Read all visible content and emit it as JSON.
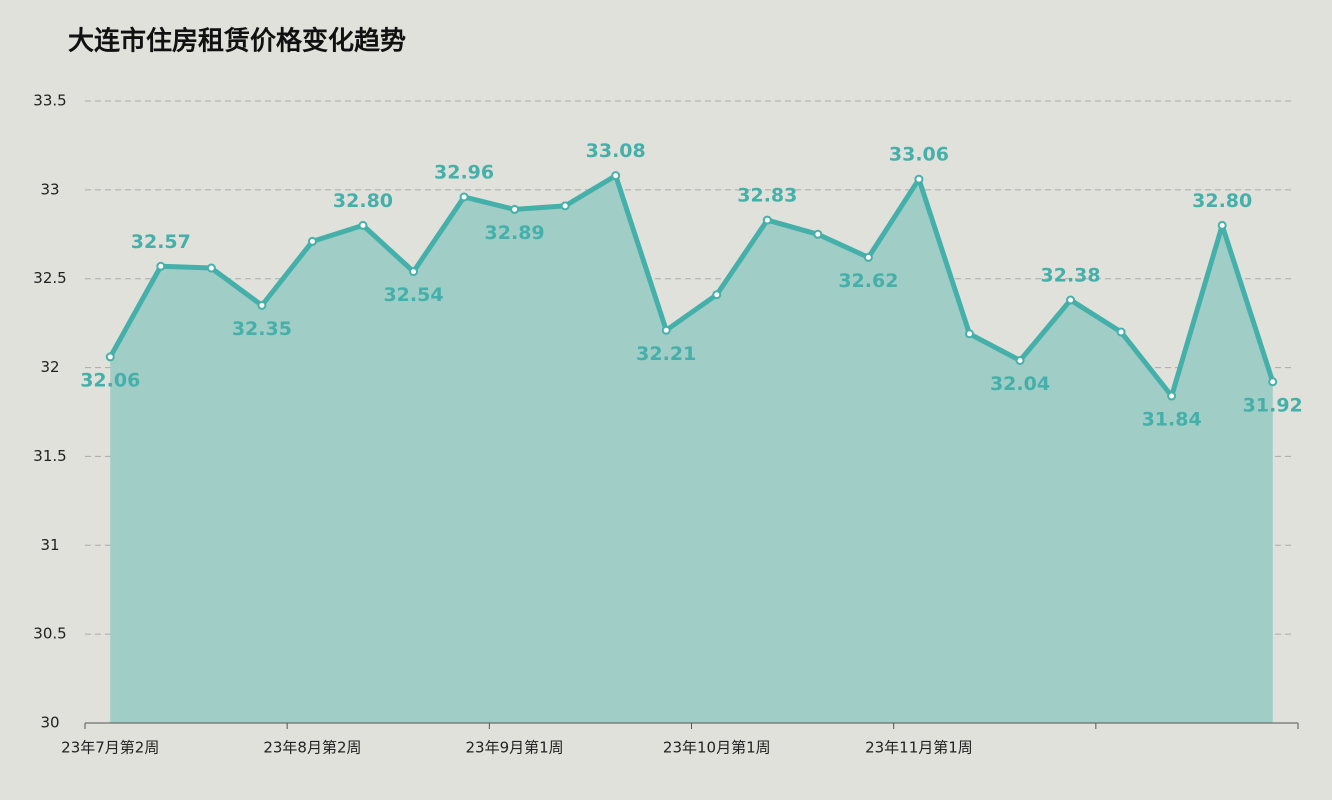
{
  "chart_data": {
    "type": "area",
    "title": "大连市住房租赁价格变化趋势",
    "categories": [
      "23年7月第2周",
      null,
      null,
      null,
      "23年8月第2周",
      null,
      null,
      null,
      "23年9月第1周",
      null,
      null,
      null,
      "23年10月第1周",
      null,
      null,
      null,
      "23年11月第1周",
      null,
      null,
      null,
      null,
      null,
      null,
      null
    ],
    "values": [
      32.06,
      32.57,
      32.56,
      32.35,
      32.71,
      32.8,
      32.54,
      32.96,
      32.89,
      32.91,
      33.08,
      32.21,
      32.41,
      32.83,
      32.75,
      32.62,
      33.06,
      32.19,
      32.04,
      32.38,
      32.2,
      31.84,
      32.8,
      31.92
    ],
    "value_labels": [
      "32.06",
      "32.57",
      null,
      "32.35",
      null,
      "32.80",
      "32.54",
      "32.96",
      "32.89",
      null,
      "33.08",
      "32.21",
      null,
      "32.83",
      null,
      "32.62",
      "33.06",
      null,
      "32.04",
      "32.38",
      null,
      "31.84",
      "32.80",
      "31.92"
    ],
    "color": "#45b0aa",
    "fill_color": "#a0cdc6",
    "ylim": [
      30,
      33.5
    ],
    "yticks": [
      30,
      30.5,
      31,
      31.5,
      32,
      32.5,
      33,
      33.5
    ],
    "grid": true
  }
}
